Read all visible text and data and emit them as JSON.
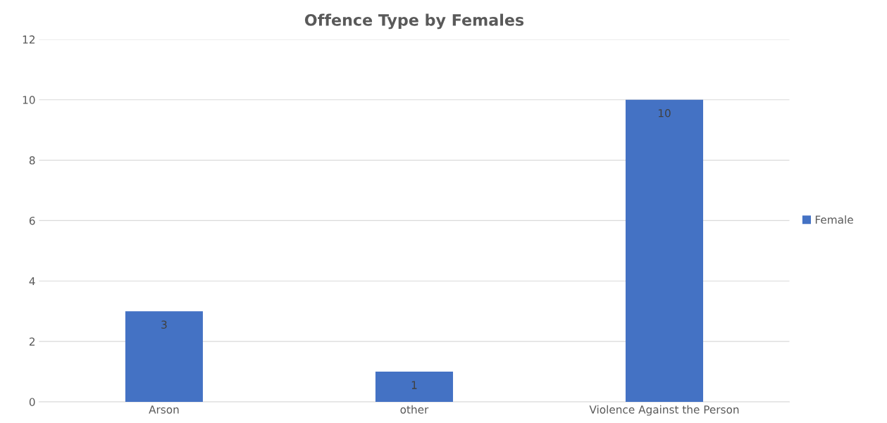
{
  "chart_data": {
    "type": "bar",
    "title": "Offence Type by Females",
    "categories": [
      "Arson",
      "other",
      "Violence Against the Person"
    ],
    "series": [
      {
        "name": "Female",
        "color": "#4472c4",
        "values": [
          3,
          1,
          10
        ]
      }
    ],
    "ylim": [
      0,
      12
    ],
    "yticks": [
      0,
      2,
      4,
      6,
      8,
      10,
      12
    ],
    "grid": "y",
    "legend": "right",
    "data_labels": true
  }
}
